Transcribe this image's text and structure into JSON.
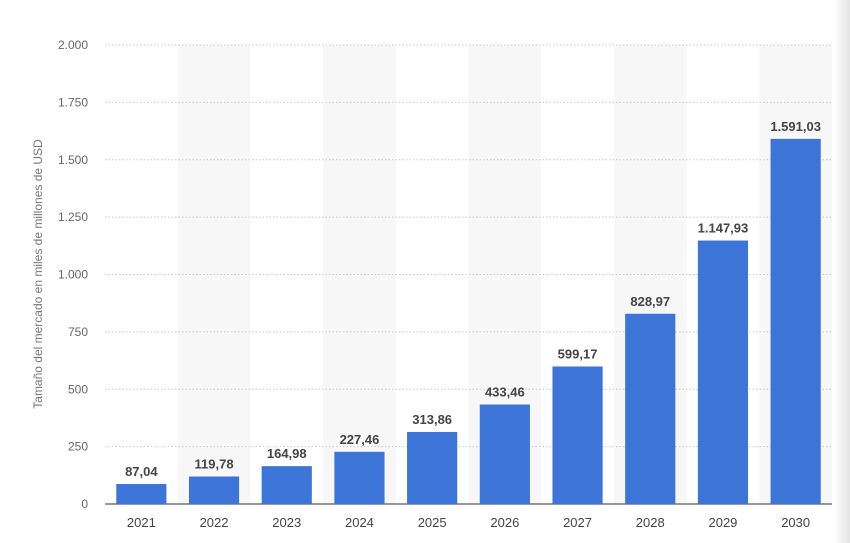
{
  "chart_data": {
    "type": "bar",
    "categories": [
      "2021",
      "2022",
      "2023",
      "2024",
      "2025",
      "2026",
      "2027",
      "2028",
      "2029",
      "2030"
    ],
    "values": [
      87.04,
      119.78,
      164.98,
      227.46,
      313.86,
      433.46,
      599.17,
      828.97,
      1147.93,
      1591.03
    ],
    "value_labels": [
      "87,04",
      "119,78",
      "164,98",
      "227,46",
      "313,86",
      "433,46",
      "599,17",
      "828,97",
      "1.147,93",
      "1.591,03"
    ],
    "ylabel": "Tamaño del mercado en miles de millones de USD",
    "ylim": [
      0,
      2000
    ],
    "yticks": [
      0,
      250,
      500,
      750,
      1000,
      1250,
      1500,
      1750,
      2000
    ],
    "ytick_labels": [
      "0",
      "250",
      "500",
      "750",
      "1.000",
      "1.250",
      "1.500",
      "1.750",
      "2.000"
    ],
    "grid": true,
    "bar_color": "#3d74d8",
    "alternate_band_color": "#f7f7f7"
  }
}
